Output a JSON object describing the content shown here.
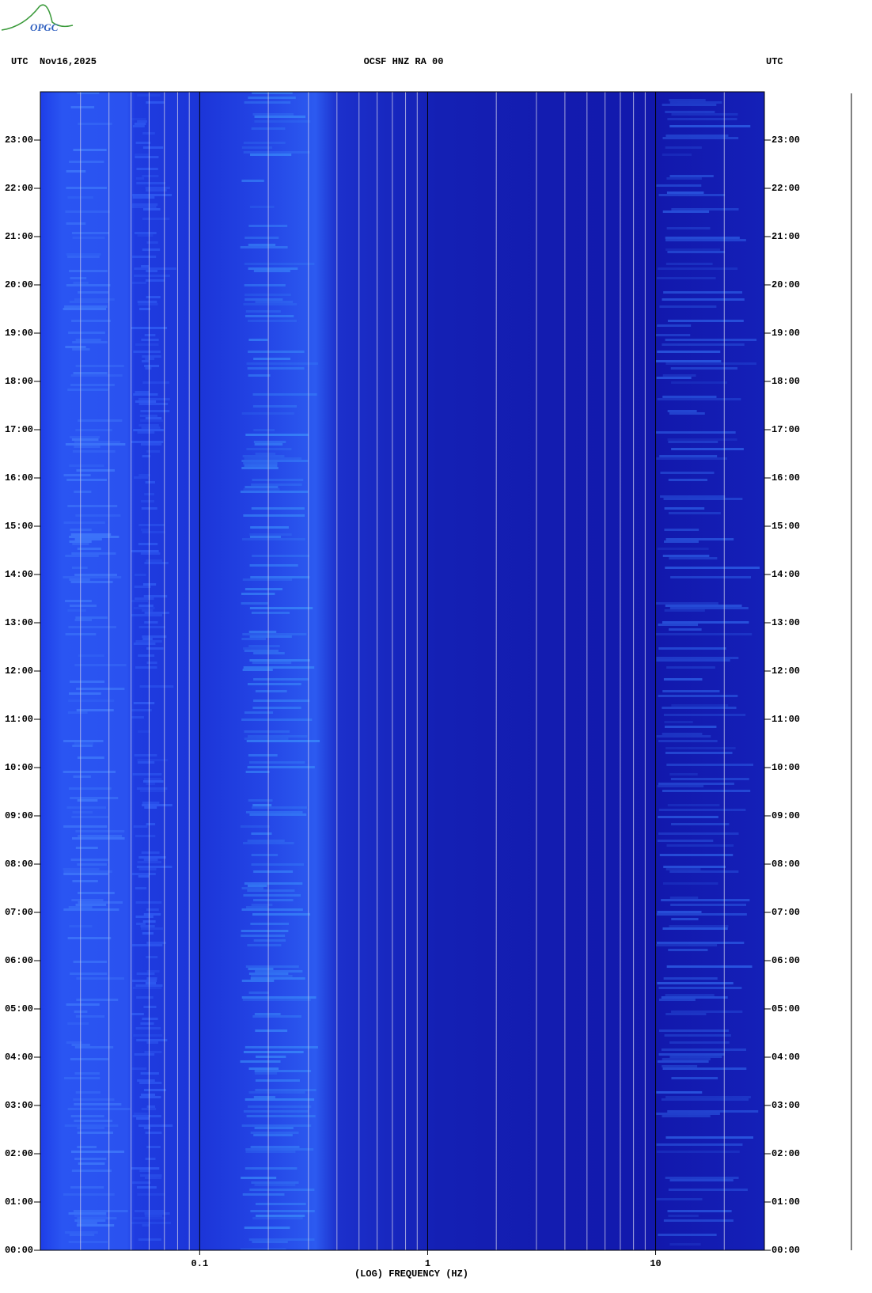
{
  "chart_data": {
    "type": "spectrogram",
    "logo": "OPGC",
    "title_left_tz": "UTC",
    "title_left_date": "Nov16,2025",
    "title": "OCSF HNZ RA 00",
    "title_right_tz": "UTC",
    "xlabel": "(LOG) FREQUENCY (HZ)",
    "xscale": "log",
    "xlim": [
      0.02,
      30
    ],
    "xticks": [
      0.1,
      1,
      10
    ],
    "ylim": [
      0,
      24
    ],
    "yticks": [
      {
        "value": 0,
        "label": "00:00"
      },
      {
        "value": 1,
        "label": "01:00"
      },
      {
        "value": 2,
        "label": "02:00"
      },
      {
        "value": 3,
        "label": "03:00"
      },
      {
        "value": 4,
        "label": "04:00"
      },
      {
        "value": 5,
        "label": "05:00"
      },
      {
        "value": 6,
        "label": "06:00"
      },
      {
        "value": 7,
        "label": "07:00"
      },
      {
        "value": 8,
        "label": "08:00"
      },
      {
        "value": 9,
        "label": "09:00"
      },
      {
        "value": 10,
        "label": "10:00"
      },
      {
        "value": 11,
        "label": "11:00"
      },
      {
        "value": 12,
        "label": "12:00"
      },
      {
        "value": 13,
        "label": "13:00"
      },
      {
        "value": 14,
        "label": "14:00"
      },
      {
        "value": 15,
        "label": "15:00"
      },
      {
        "value": 16,
        "label": "16:00"
      },
      {
        "value": 17,
        "label": "17:00"
      },
      {
        "value": 18,
        "label": "18:00"
      },
      {
        "value": 19,
        "label": "19:00"
      },
      {
        "value": 20,
        "label": "20:00"
      },
      {
        "value": 21,
        "label": "21:00"
      },
      {
        "value": 22,
        "label": "22:00"
      },
      {
        "value": 23,
        "label": "23:00"
      }
    ],
    "grid": true
  }
}
